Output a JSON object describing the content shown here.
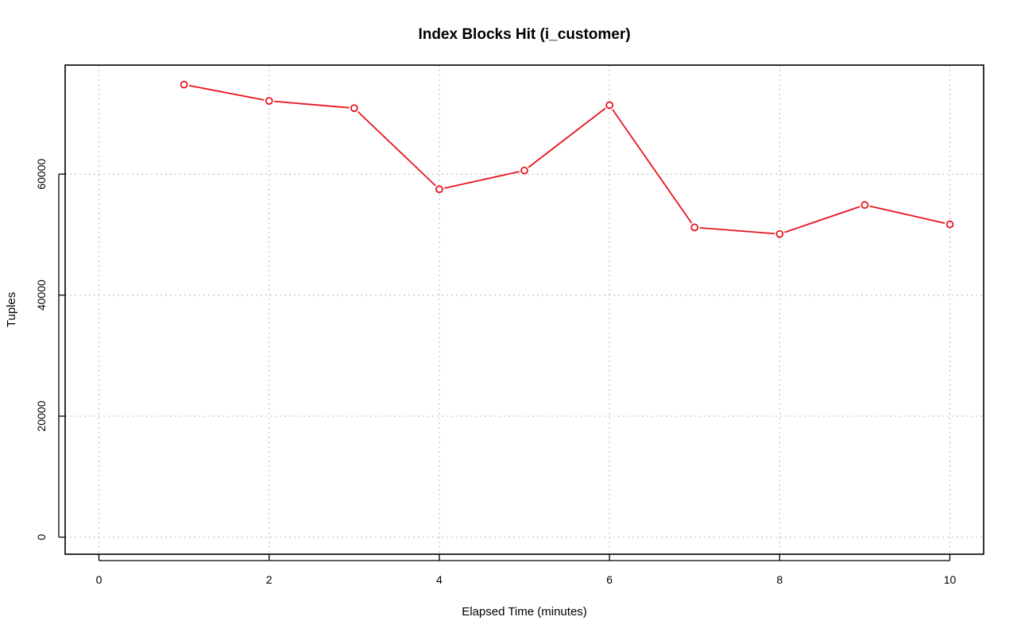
{
  "chart_data": {
    "type": "line",
    "title": "Index Blocks Hit (i_customer)",
    "xlabel": "Elapsed Time (minutes)",
    "ylabel": "Tuples",
    "xlim": [
      0,
      10
    ],
    "ylim": [
      0,
      75000
    ],
    "x_ticks": [
      "0",
      "2",
      "4",
      "6",
      "8",
      "10"
    ],
    "y_ticks": [
      "0",
      "20000",
      "40000",
      "60000"
    ],
    "grid": true,
    "legend": "none",
    "series": [
      {
        "color": "#e8141d",
        "marker": "open-circle",
        "x": [
          1,
          2,
          3,
          4,
          5,
          6,
          7,
          8,
          9,
          10
        ],
        "y": [
          74800,
          72100,
          70900,
          57500,
          60600,
          71400,
          51200,
          50100,
          54900,
          51700
        ]
      }
    ]
  }
}
